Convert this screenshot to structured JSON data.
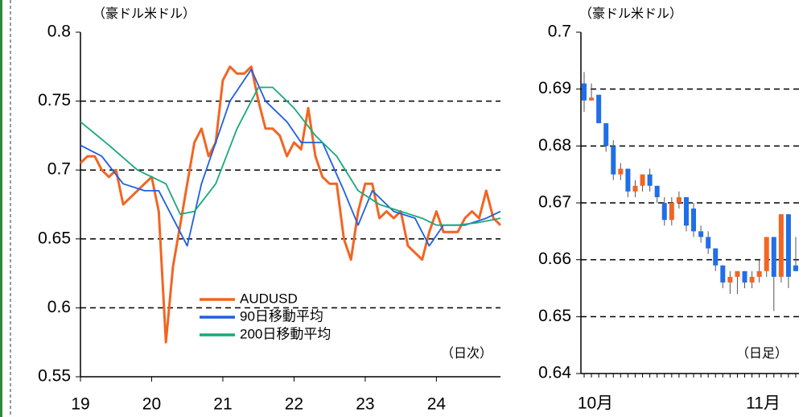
{
  "chart_data": [
    {
      "type": "line",
      "unit_label": "（豪ドル米ドル）",
      "note": "（日次）",
      "xlim": [
        19,
        24.9
      ],
      "xticks": [
        19,
        20,
        21,
        22,
        23,
        24
      ],
      "ylim": [
        0.55,
        0.8
      ],
      "yticks": [
        0.55,
        0.6,
        0.65,
        0.7,
        0.75,
        0.8
      ],
      "grid": true,
      "series": [
        {
          "name": "AUDUSD",
          "color": "#f26522",
          "x": [
            19.0,
            19.1,
            19.2,
            19.3,
            19.4,
            19.5,
            19.6,
            19.7,
            19.8,
            19.9,
            20.0,
            20.1,
            20.2,
            20.3,
            20.4,
            20.5,
            20.6,
            20.7,
            20.8,
            20.9,
            21.0,
            21.1,
            21.2,
            21.3,
            21.4,
            21.5,
            21.6,
            21.7,
            21.8,
            21.9,
            22.0,
            22.1,
            22.2,
            22.3,
            22.4,
            22.5,
            22.6,
            22.7,
            22.8,
            22.9,
            23.0,
            23.1,
            23.2,
            23.3,
            23.4,
            23.5,
            23.6,
            23.7,
            23.8,
            23.9,
            24.0,
            24.1,
            24.2,
            24.3,
            24.4,
            24.5,
            24.6,
            24.7,
            24.8,
            24.9
          ],
          "values": [
            0.705,
            0.71,
            0.71,
            0.7,
            0.695,
            0.7,
            0.675,
            0.68,
            0.685,
            0.69,
            0.695,
            0.67,
            0.575,
            0.63,
            0.66,
            0.69,
            0.72,
            0.73,
            0.71,
            0.72,
            0.765,
            0.775,
            0.77,
            0.77,
            0.775,
            0.75,
            0.73,
            0.73,
            0.725,
            0.71,
            0.72,
            0.715,
            0.745,
            0.71,
            0.695,
            0.69,
            0.69,
            0.65,
            0.635,
            0.67,
            0.69,
            0.69,
            0.665,
            0.67,
            0.665,
            0.67,
            0.645,
            0.64,
            0.635,
            0.655,
            0.67,
            0.655,
            0.655,
            0.655,
            0.665,
            0.67,
            0.665,
            0.685,
            0.665,
            0.66
          ]
        },
        {
          "name": "90日移動平均",
          "color": "#1f5fe0",
          "x": [
            19.0,
            19.3,
            19.6,
            19.9,
            20.1,
            20.3,
            20.5,
            20.7,
            20.9,
            21.1,
            21.4,
            21.6,
            21.9,
            22.1,
            22.4,
            22.7,
            22.9,
            23.1,
            23.4,
            23.7,
            23.9,
            24.1,
            24.4,
            24.7,
            24.9
          ],
          "values": [
            0.718,
            0.71,
            0.69,
            0.685,
            0.685,
            0.665,
            0.645,
            0.69,
            0.72,
            0.75,
            0.773,
            0.75,
            0.735,
            0.72,
            0.72,
            0.685,
            0.66,
            0.685,
            0.67,
            0.665,
            0.645,
            0.66,
            0.66,
            0.665,
            0.67
          ]
        },
        {
          "name": "200日移動平均",
          "color": "#19a97b",
          "x": [
            19.0,
            19.4,
            19.8,
            20.2,
            20.4,
            20.6,
            20.9,
            21.2,
            21.5,
            21.7,
            22.0,
            22.3,
            22.6,
            22.9,
            23.2,
            23.5,
            23.8,
            24.0,
            24.3,
            24.6,
            24.9
          ],
          "values": [
            0.735,
            0.718,
            0.7,
            0.69,
            0.668,
            0.67,
            0.69,
            0.73,
            0.76,
            0.76,
            0.745,
            0.725,
            0.71,
            0.685,
            0.675,
            0.67,
            0.665,
            0.66,
            0.66,
            0.662,
            0.665
          ]
        }
      ]
    },
    {
      "type": "candlestick",
      "unit_label": "（豪ドル米ドル）",
      "note": "（日足）",
      "ylim": [
        0.64,
        0.7
      ],
      "yticks": [
        0.64,
        0.65,
        0.66,
        0.67,
        0.68,
        0.69,
        0.7
      ],
      "grid": true,
      "up_color": "#f26522",
      "down_color": "#1f6fe8",
      "categories": [
        "10月",
        null,
        null,
        null,
        null,
        null,
        null,
        null,
        null,
        null,
        null,
        null,
        null,
        null,
        null,
        null,
        null,
        null,
        null,
        null,
        null,
        null,
        null,
        "11月",
        null,
        null,
        null,
        null,
        null,
        null
      ],
      "open": [
        0.691,
        0.688,
        0.689,
        0.684,
        0.68,
        0.675,
        0.676,
        0.672,
        0.673,
        0.675,
        0.673,
        0.67,
        0.667,
        0.67,
        0.671,
        0.669,
        0.665,
        0.664,
        0.662,
        0.659,
        0.656,
        0.657,
        0.658,
        0.656,
        0.657,
        0.658,
        0.664,
        0.657,
        0.668,
        0.659
      ],
      "high": [
        0.693,
        0.691,
        0.689,
        0.684,
        0.681,
        0.677,
        0.676,
        0.674,
        0.675,
        0.676,
        0.673,
        0.671,
        0.671,
        0.672,
        0.671,
        0.67,
        0.666,
        0.665,
        0.662,
        0.659,
        0.658,
        0.658,
        0.658,
        0.658,
        0.66,
        0.664,
        0.664,
        0.668,
        0.668,
        0.664
      ],
      "low": [
        0.686,
        0.688,
        0.684,
        0.679,
        0.674,
        0.674,
        0.671,
        0.671,
        0.672,
        0.672,
        0.67,
        0.666,
        0.666,
        0.669,
        0.665,
        0.664,
        0.663,
        0.661,
        0.658,
        0.655,
        0.654,
        0.654,
        0.655,
        0.655,
        0.656,
        0.657,
        0.651,
        0.656,
        0.655,
        0.658
      ],
      "close": [
        0.688,
        0.6885,
        0.684,
        0.68,
        0.675,
        0.676,
        0.672,
        0.673,
        0.675,
        0.673,
        0.671,
        0.667,
        0.67,
        0.671,
        0.666,
        0.665,
        0.664,
        0.662,
        0.659,
        0.656,
        0.657,
        0.658,
        0.656,
        0.657,
        0.658,
        0.664,
        0.657,
        0.668,
        0.657,
        0.658
      ]
    }
  ]
}
